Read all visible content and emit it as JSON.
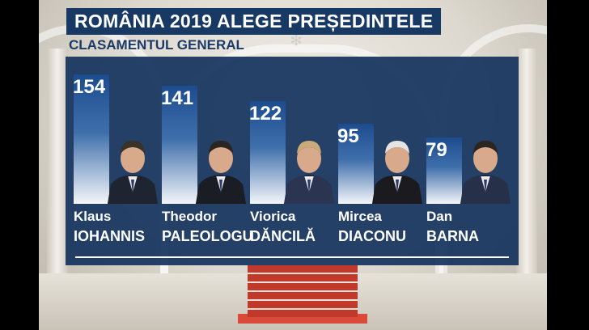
{
  "title": "ROMÂNIA 2019 ALEGE PREȘEDINTELE",
  "subtitle": "CLASAMENTUL GENERAL",
  "chart_data": {
    "type": "bar",
    "title": "ROMÂNIA 2019 ALEGE PREȘEDINTELE",
    "subtitle": "CLASAMENTUL GENERAL",
    "categories": [
      "Klaus IOHANNIS",
      "Theodor PALEOLOGU",
      "Viorica DĂNCILĂ",
      "Mircea DIACONU",
      "Dan BARNA"
    ],
    "values": [
      154,
      141,
      122,
      95,
      79
    ],
    "value_labels": [
      "154",
      "141",
      "122",
      "95",
      "79"
    ],
    "candidates": [
      {
        "first": "Klaus",
        "last": "IOHANNIS"
      },
      {
        "first": "Theodor",
        "last": "PALEOLOGU"
      },
      {
        "first": "Viorica",
        "last": "DĂNCILĂ"
      },
      {
        "first": "Mircea",
        "last": "DIACONU"
      },
      {
        "first": "Dan",
        "last": "BARNA"
      }
    ],
    "ylim": [
      0,
      154
    ],
    "grid": false,
    "legend": "none",
    "colors": {
      "bar_top": "#1c4c8e",
      "bar_bottom": "#f4f6fa",
      "panel": "#16345e",
      "title_bg": "#183964"
    }
  }
}
